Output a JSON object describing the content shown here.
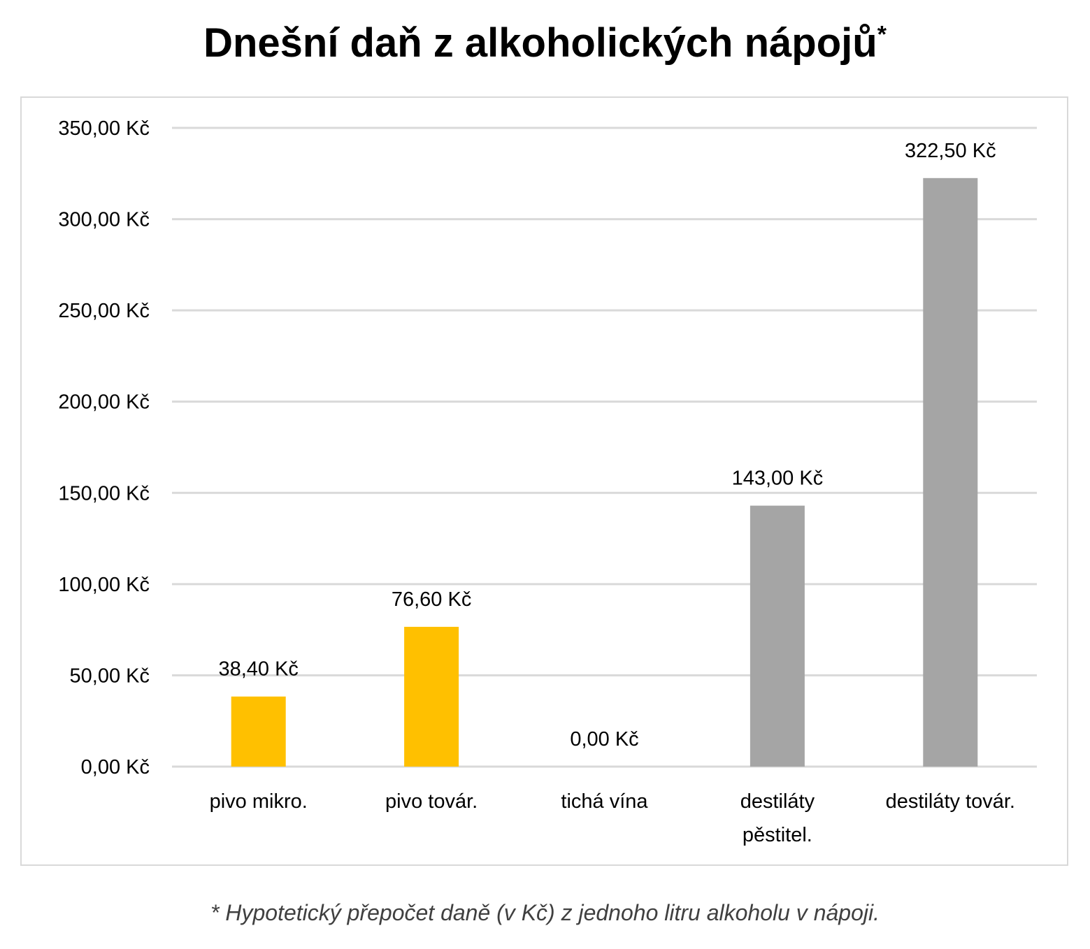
{
  "chart_data": {
    "type": "bar",
    "title": "Dnešní daň z alkoholických nápojů",
    "title_marker": "*",
    "categories": [
      [
        "pivo mikro."
      ],
      [
        "pivo továr."
      ],
      [
        "tichá vína"
      ],
      [
        "destiláty",
        "pěstitel."
      ],
      [
        "destiláty továr."
      ]
    ],
    "values": [
      38.4,
      76.6,
      0,
      143,
      322.5
    ],
    "data_labels": [
      "38,40 Kč",
      "76,60 Kč",
      "0,00 Kč",
      "143,00 Kč",
      "322,50 Kč"
    ],
    "colors": [
      "#FFC000",
      "#FFC000",
      "#FFC000",
      "#A5A5A5",
      "#A5A5A5"
    ],
    "ylim": [
      0,
      350
    ],
    "yticks": [
      0,
      50,
      100,
      150,
      200,
      250,
      300,
      350
    ],
    "ytick_labels": [
      "0,00 Kč",
      "50,00 Kč",
      "100,00 Kč",
      "150,00 Kč",
      "200,00 Kč",
      "250,00 Kč",
      "300,00 Kč",
      "350,00 Kč"
    ],
    "grid": true,
    "gridline_color": "#D9D9D9",
    "legend": "none"
  },
  "footnote": "* Hypotetický přepočet daně (v Kč) z jednoho litru alkoholu v nápoji."
}
